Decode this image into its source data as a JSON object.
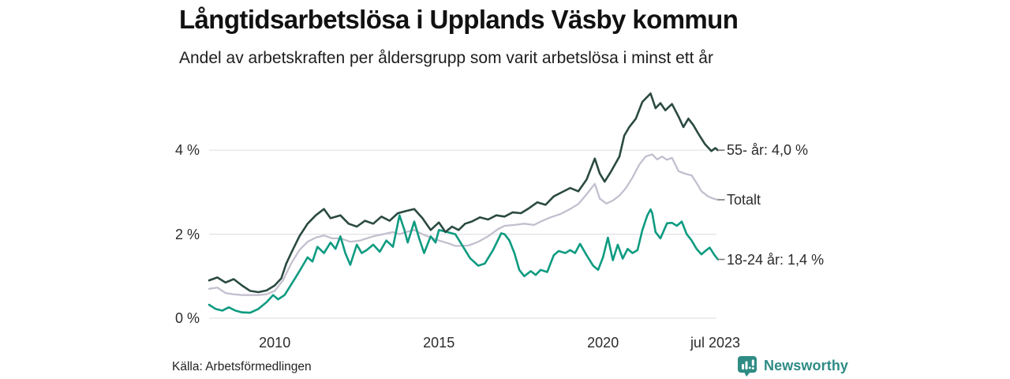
{
  "header": {
    "title": "Långtidsarbetslösa i Upplands Väsby kommun",
    "subtitle": "Andel av arbetskraften per åldersgrupp som varit arbetslösa i minst ett år"
  },
  "footer": {
    "source": "Källa: Arbetsförmedlingen",
    "brand": "Newsworthy",
    "brand_color": "#2e8b85"
  },
  "chart_data": {
    "type": "line",
    "title": "Långtidsarbetslösa i Upplands Väsby kommun",
    "subtitle": "Andel av arbetskraften per åldersgrupp som varit arbetslösa i minst ett år",
    "unit": "%",
    "grid": true,
    "grid_color": "#e2e2e8",
    "x_range": [
      2008.0,
      2023.5
    ],
    "y_range": [
      0,
      5.6
    ],
    "y_axis": {
      "ticks": [
        {
          "value": 0,
          "label": "0 %"
        },
        {
          "value": 2,
          "label": "2 %"
        },
        {
          "value": 4,
          "label": "4 %"
        }
      ]
    },
    "x_axis": {
      "ticks": [
        {
          "year": 2010,
          "label": "2010"
        },
        {
          "year": 2015,
          "label": "2015"
        },
        {
          "year": 2020,
          "label": "2020"
        },
        {
          "year": 2023.42,
          "label": "jul 2023"
        }
      ]
    },
    "legend_position": "right-end-labels",
    "series": [
      {
        "id": "age-55-plus",
        "name": "55- år",
        "end_label": "55- år: 4,0 %",
        "end_value": 4.0,
        "color": "#2b4a41",
        "stroke_width": 2.6,
        "points": [
          [
            2008.0,
            0.9
          ],
          [
            2008.25,
            0.97
          ],
          [
            2008.5,
            0.85
          ],
          [
            2008.75,
            0.93
          ],
          [
            2009.0,
            0.78
          ],
          [
            2009.25,
            0.65
          ],
          [
            2009.5,
            0.62
          ],
          [
            2009.75,
            0.66
          ],
          [
            2010.0,
            0.78
          ],
          [
            2010.2,
            0.95
          ],
          [
            2010.35,
            1.3
          ],
          [
            2010.5,
            1.55
          ],
          [
            2010.75,
            1.95
          ],
          [
            2011.0,
            2.25
          ],
          [
            2011.25,
            2.45
          ],
          [
            2011.5,
            2.6
          ],
          [
            2011.7,
            2.38
          ],
          [
            2012.0,
            2.45
          ],
          [
            2012.25,
            2.25
          ],
          [
            2012.5,
            2.18
          ],
          [
            2012.75,
            2.32
          ],
          [
            2013.0,
            2.25
          ],
          [
            2013.25,
            2.42
          ],
          [
            2013.5,
            2.32
          ],
          [
            2013.75,
            2.5
          ],
          [
            2014.0,
            2.55
          ],
          [
            2014.25,
            2.6
          ],
          [
            2014.5,
            2.38
          ],
          [
            2014.75,
            2.1
          ],
          [
            2015.0,
            2.28
          ],
          [
            2015.2,
            2.05
          ],
          [
            2015.4,
            2.18
          ],
          [
            2015.6,
            2.1
          ],
          [
            2015.8,
            2.25
          ],
          [
            2016.0,
            2.3
          ],
          [
            2016.25,
            2.4
          ],
          [
            2016.5,
            2.35
          ],
          [
            2016.75,
            2.45
          ],
          [
            2017.0,
            2.42
          ],
          [
            2017.25,
            2.52
          ],
          [
            2017.5,
            2.5
          ],
          [
            2017.75,
            2.62
          ],
          [
            2018.0,
            2.76
          ],
          [
            2018.25,
            2.7
          ],
          [
            2018.5,
            2.9
          ],
          [
            2018.75,
            3.0
          ],
          [
            2019.0,
            3.1
          ],
          [
            2019.25,
            3.02
          ],
          [
            2019.5,
            3.3
          ],
          [
            2019.75,
            3.8
          ],
          [
            2019.9,
            3.45
          ],
          [
            2020.05,
            3.25
          ],
          [
            2020.25,
            3.5
          ],
          [
            2020.5,
            3.85
          ],
          [
            2020.65,
            4.35
          ],
          [
            2020.8,
            4.55
          ],
          [
            2021.0,
            4.75
          ],
          [
            2021.2,
            5.15
          ],
          [
            2021.45,
            5.35
          ],
          [
            2021.6,
            5.0
          ],
          [
            2021.75,
            5.12
          ],
          [
            2021.9,
            4.95
          ],
          [
            2022.1,
            5.1
          ],
          [
            2022.3,
            4.8
          ],
          [
            2022.45,
            4.55
          ],
          [
            2022.6,
            4.75
          ],
          [
            2022.75,
            4.6
          ],
          [
            2022.9,
            4.4
          ],
          [
            2023.1,
            4.15
          ],
          [
            2023.3,
            3.98
          ],
          [
            2023.42,
            4.05
          ],
          [
            2023.5,
            4.0
          ]
        ]
      },
      {
        "id": "total",
        "name": "Totalt",
        "end_label": "Totalt",
        "end_value": 2.82,
        "color": "#c3bfce",
        "stroke_width": 2.3,
        "points": [
          [
            2008.0,
            0.7
          ],
          [
            2008.25,
            0.73
          ],
          [
            2008.5,
            0.6
          ],
          [
            2008.75,
            0.57
          ],
          [
            2009.0,
            0.55
          ],
          [
            2009.5,
            0.55
          ],
          [
            2009.75,
            0.57
          ],
          [
            2010.0,
            0.65
          ],
          [
            2010.25,
            0.9
          ],
          [
            2010.5,
            1.3
          ],
          [
            2010.75,
            1.62
          ],
          [
            2011.0,
            1.82
          ],
          [
            2011.25,
            1.92
          ],
          [
            2011.5,
            1.97
          ],
          [
            2011.75,
            1.9
          ],
          [
            2012.0,
            1.9
          ],
          [
            2012.3,
            1.82
          ],
          [
            2012.6,
            1.85
          ],
          [
            2013.0,
            1.95
          ],
          [
            2013.3,
            2.0
          ],
          [
            2013.6,
            2.05
          ],
          [
            2013.8,
            2.0
          ],
          [
            2014.0,
            2.05
          ],
          [
            2014.25,
            2.1
          ],
          [
            2014.5,
            2.0
          ],
          [
            2014.75,
            1.92
          ],
          [
            2015.0,
            1.85
          ],
          [
            2015.3,
            1.78
          ],
          [
            2015.5,
            1.72
          ],
          [
            2015.9,
            1.73
          ],
          [
            2016.2,
            1.82
          ],
          [
            2016.5,
            1.95
          ],
          [
            2016.8,
            2.12
          ],
          [
            2017.0,
            2.2
          ],
          [
            2017.3,
            2.22
          ],
          [
            2017.6,
            2.25
          ],
          [
            2017.9,
            2.22
          ],
          [
            2018.1,
            2.3
          ],
          [
            2018.4,
            2.4
          ],
          [
            2018.7,
            2.48
          ],
          [
            2019.0,
            2.6
          ],
          [
            2019.25,
            2.72
          ],
          [
            2019.5,
            2.95
          ],
          [
            2019.75,
            3.2
          ],
          [
            2019.9,
            2.85
          ],
          [
            2020.1,
            2.73
          ],
          [
            2020.3,
            2.8
          ],
          [
            2020.5,
            2.92
          ],
          [
            2020.7,
            3.1
          ],
          [
            2020.9,
            3.35
          ],
          [
            2021.1,
            3.65
          ],
          [
            2021.3,
            3.85
          ],
          [
            2021.5,
            3.9
          ],
          [
            2021.65,
            3.78
          ],
          [
            2021.8,
            3.85
          ],
          [
            2021.95,
            3.77
          ],
          [
            2022.1,
            3.82
          ],
          [
            2022.3,
            3.5
          ],
          [
            2022.5,
            3.44
          ],
          [
            2022.7,
            3.4
          ],
          [
            2022.85,
            3.22
          ],
          [
            2023.0,
            3.02
          ],
          [
            2023.2,
            2.9
          ],
          [
            2023.35,
            2.85
          ],
          [
            2023.5,
            2.82
          ]
        ]
      },
      {
        "id": "age-18-24",
        "name": "18-24 år",
        "end_label": "18-24 år: 1,4 %",
        "end_value": 1.4,
        "color": "#0e9b81",
        "stroke_width": 2.6,
        "points": [
          [
            2008.0,
            0.32
          ],
          [
            2008.2,
            0.22
          ],
          [
            2008.4,
            0.18
          ],
          [
            2008.6,
            0.26
          ],
          [
            2008.8,
            0.18
          ],
          [
            2009.0,
            0.14
          ],
          [
            2009.25,
            0.13
          ],
          [
            2009.5,
            0.22
          ],
          [
            2009.75,
            0.38
          ],
          [
            2009.95,
            0.55
          ],
          [
            2010.1,
            0.45
          ],
          [
            2010.3,
            0.55
          ],
          [
            2010.5,
            0.8
          ],
          [
            2010.7,
            1.05
          ],
          [
            2010.85,
            1.25
          ],
          [
            2011.0,
            1.45
          ],
          [
            2011.15,
            1.35
          ],
          [
            2011.3,
            1.7
          ],
          [
            2011.5,
            1.55
          ],
          [
            2011.7,
            1.8
          ],
          [
            2011.85,
            1.65
          ],
          [
            2012.0,
            1.95
          ],
          [
            2012.15,
            1.55
          ],
          [
            2012.3,
            1.27
          ],
          [
            2012.5,
            1.75
          ],
          [
            2012.65,
            1.55
          ],
          [
            2012.8,
            1.62
          ],
          [
            2013.0,
            1.75
          ],
          [
            2013.2,
            1.58
          ],
          [
            2013.4,
            1.85
          ],
          [
            2013.6,
            1.7
          ],
          [
            2013.8,
            2.45
          ],
          [
            2013.95,
            2.1
          ],
          [
            2014.05,
            1.8
          ],
          [
            2014.25,
            2.3
          ],
          [
            2014.4,
            1.9
          ],
          [
            2014.55,
            1.55
          ],
          [
            2014.75,
            1.95
          ],
          [
            2014.9,
            1.8
          ],
          [
            2015.0,
            2.1
          ],
          [
            2015.25,
            2.05
          ],
          [
            2015.5,
            2.0
          ],
          [
            2015.7,
            1.75
          ],
          [
            2015.95,
            1.43
          ],
          [
            2016.2,
            1.25
          ],
          [
            2016.4,
            1.3
          ],
          [
            2016.65,
            1.62
          ],
          [
            2016.9,
            2.02
          ],
          [
            2017.0,
            2.0
          ],
          [
            2017.15,
            1.85
          ],
          [
            2017.3,
            1.55
          ],
          [
            2017.45,
            1.15
          ],
          [
            2017.6,
            1.0
          ],
          [
            2017.8,
            1.12
          ],
          [
            2017.95,
            1.03
          ],
          [
            2018.1,
            1.15
          ],
          [
            2018.3,
            1.1
          ],
          [
            2018.5,
            1.5
          ],
          [
            2018.65,
            1.6
          ],
          [
            2018.85,
            1.55
          ],
          [
            2019.0,
            1.62
          ],
          [
            2019.15,
            1.55
          ],
          [
            2019.3,
            1.77
          ],
          [
            2019.5,
            1.5
          ],
          [
            2019.7,
            1.25
          ],
          [
            2019.85,
            1.15
          ],
          [
            2020.0,
            1.45
          ],
          [
            2020.15,
            1.92
          ],
          [
            2020.3,
            1.38
          ],
          [
            2020.45,
            1.75
          ],
          [
            2020.6,
            1.42
          ],
          [
            2020.75,
            1.65
          ],
          [
            2020.9,
            1.55
          ],
          [
            2021.05,
            1.62
          ],
          [
            2021.2,
            2.1
          ],
          [
            2021.35,
            2.45
          ],
          [
            2021.45,
            2.59
          ],
          [
            2021.5,
            2.5
          ],
          [
            2021.6,
            2.05
          ],
          [
            2021.75,
            1.9
          ],
          [
            2021.95,
            2.26
          ],
          [
            2022.1,
            2.27
          ],
          [
            2022.25,
            2.2
          ],
          [
            2022.4,
            2.3
          ],
          [
            2022.55,
            2.0
          ],
          [
            2022.7,
            1.85
          ],
          [
            2022.85,
            1.65
          ],
          [
            2023.0,
            1.52
          ],
          [
            2023.15,
            1.62
          ],
          [
            2023.25,
            1.68
          ],
          [
            2023.4,
            1.5
          ],
          [
            2023.5,
            1.4
          ]
        ]
      }
    ]
  }
}
